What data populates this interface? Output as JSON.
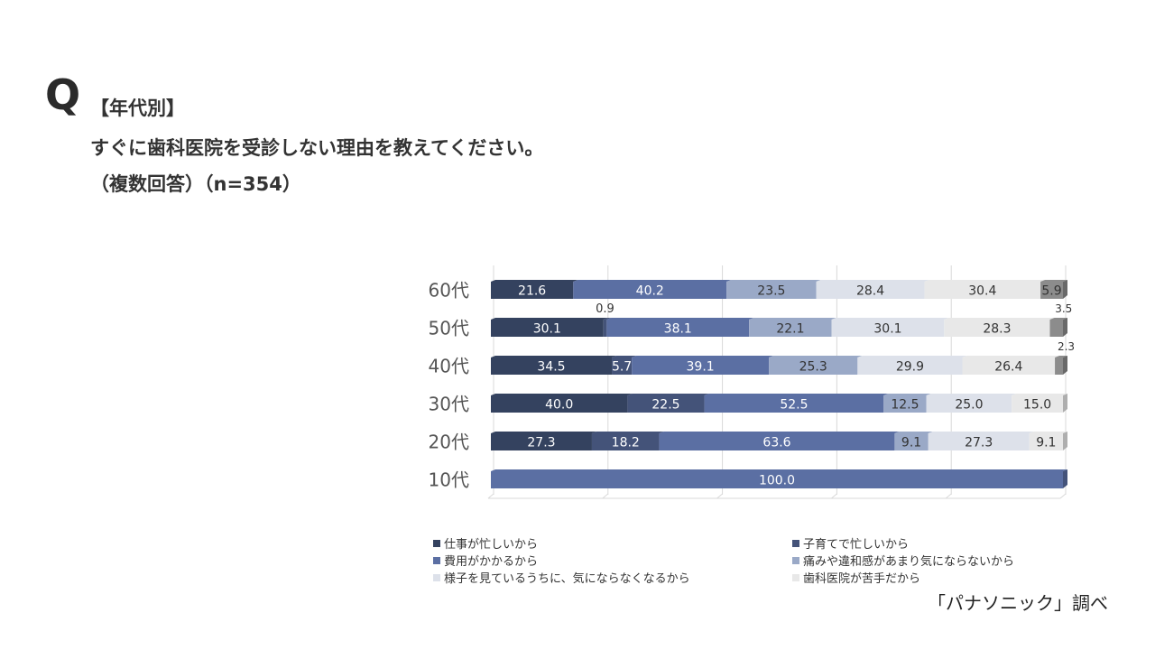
{
  "question": {
    "mark": "Q",
    "tag": "【年代別】",
    "text": "すぐに歯科医院を受診しない理由を教えてください。",
    "sub": "（複数回答）（n=354）"
  },
  "source": "「パナソニック」調べ",
  "chart_data": {
    "type": "bar",
    "orientation": "horizontal",
    "stacked": true,
    "three_d": true,
    "categories": [
      "60代",
      "50代",
      "40代",
      "30代",
      "20代",
      "10代"
    ],
    "series": [
      {
        "name": "仕事が忙しいから",
        "color": "#34425f",
        "values": [
          21.6,
          30.1,
          34.5,
          40.0,
          27.3,
          0
        ]
      },
      {
        "name": "子育てで忙しいから",
        "color": "#445379",
        "values": [
          0,
          0.9,
          5.7,
          22.5,
          18.2,
          0
        ]
      },
      {
        "name": "費用がかかるから",
        "color": "#5b6fa3",
        "values": [
          40.2,
          38.1,
          39.1,
          52.5,
          63.6,
          100.0
        ]
      },
      {
        "name": "痛みや違和感があまり気にならないから",
        "color": "#9aa9c7",
        "values": [
          23.5,
          22.1,
          25.3,
          12.5,
          9.1,
          0
        ]
      },
      {
        "name": "様子を見ているうちに、気にならなくなるから",
        "color": "#dde1ea",
        "values": [
          28.4,
          30.1,
          29.9,
          25.0,
          27.3,
          0
        ]
      },
      {
        "name": "歯科医院が苦手だから",
        "color": "#e8e8e8",
        "values": [
          30.4,
          28.3,
          26.4,
          15.0,
          9.1,
          0
        ]
      },
      {
        "name": "",
        "color": "#8c8c8c",
        "values": [
          5.9,
          3.5,
          2.3,
          0,
          0,
          0
        ]
      }
    ],
    "label_color_light": "#ffffff",
    "label_color_dark": "#333333",
    "grid": true,
    "legend": "bottom"
  }
}
